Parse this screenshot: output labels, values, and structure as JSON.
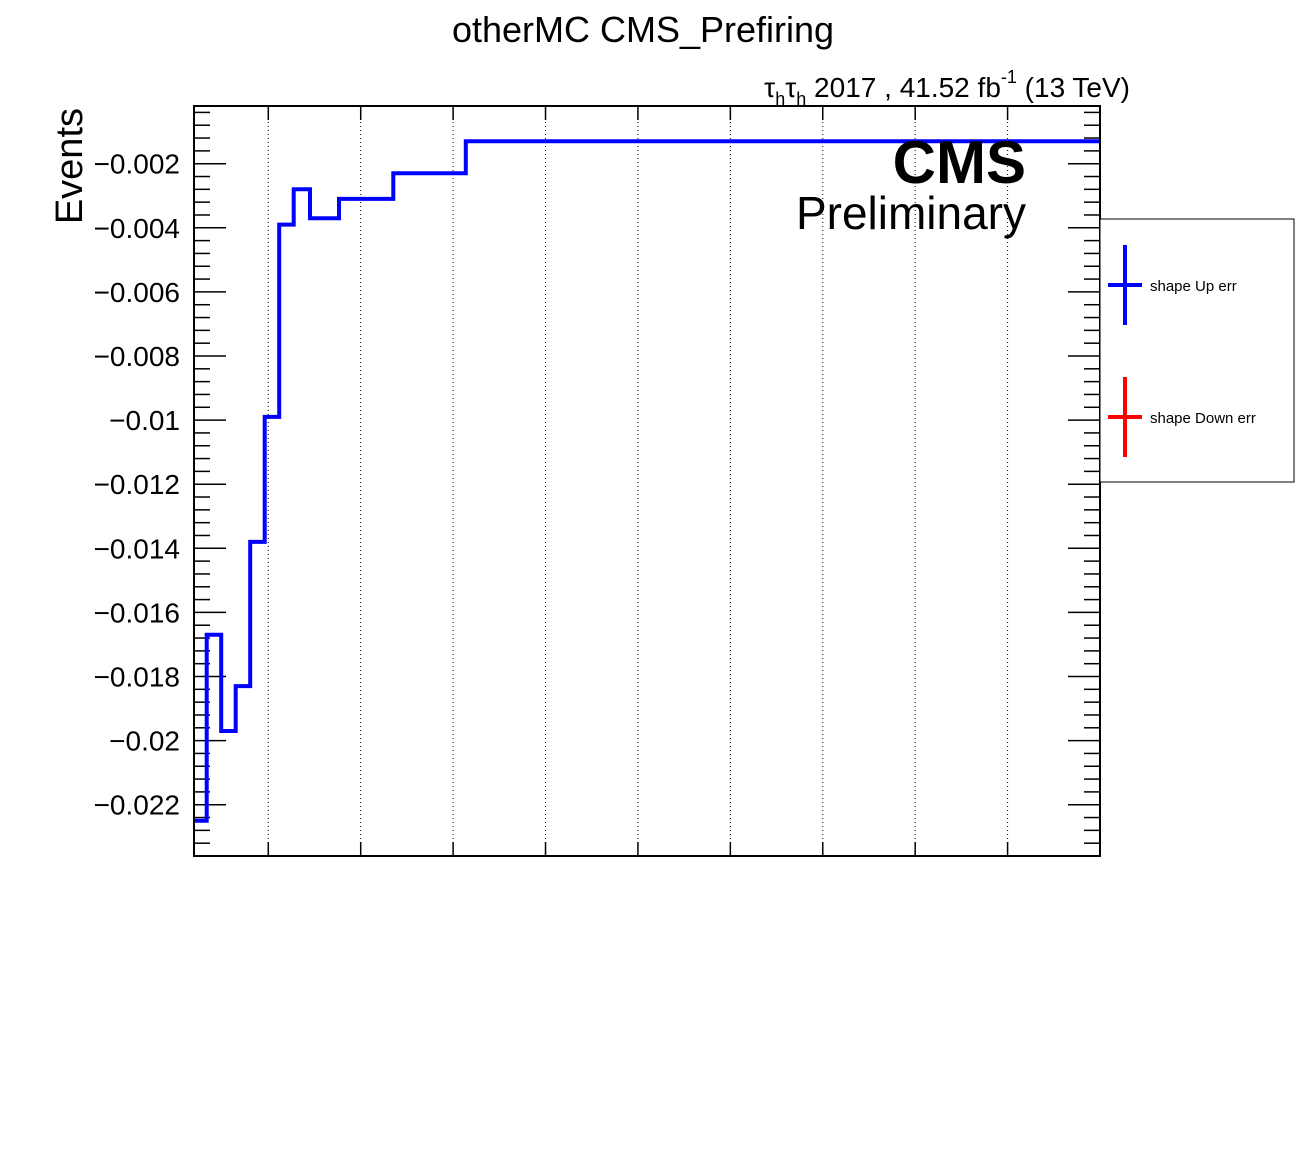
{
  "chart_data": {
    "type": "line",
    "title": "otherMC CMS_Prefiring",
    "header": {
      "tau": "τ",
      "sub": "h",
      "rest": " 2017 , 41.52 fb",
      "exp": "-1",
      "energy": " (13 TeV)"
    },
    "cms_label": "CMS",
    "cms_sublabel": "Preliminary",
    "ylabel": "Events",
    "xlabel": "",
    "ylim": [
      -0.0236,
      -0.0002
    ],
    "y_ticks": [
      {
        "value": -0.002,
        "label": "−0.002"
      },
      {
        "value": -0.004,
        "label": "−0.004"
      },
      {
        "value": -0.006,
        "label": "−0.006"
      },
      {
        "value": -0.008,
        "label": "−0.008"
      },
      {
        "value": -0.01,
        "label": "−0.01"
      },
      {
        "value": -0.012,
        "label": "−0.012"
      },
      {
        "value": -0.014,
        "label": "−0.014"
      },
      {
        "value": -0.016,
        "label": "−0.016"
      },
      {
        "value": -0.018,
        "label": "−0.018"
      },
      {
        "value": -0.02,
        "label": "−0.02"
      },
      {
        "value": -0.022,
        "label": "−0.022"
      }
    ],
    "x_bin_edges": [
      0,
      7,
      15,
      23,
      31,
      39,
      47,
      55,
      64,
      72,
      80,
      90,
      100,
      110,
      120,
      130,
      140,
      150,
      160,
      170,
      180,
      190,
      200,
      210,
      220,
      230,
      240,
      250,
      260,
      270,
      280,
      290,
      300,
      310,
      320,
      330,
      340,
      350,
      360,
      370,
      380,
      390,
      400,
      410,
      420,
      430,
      440,
      450,
      460,
      470,
      480,
      490,
      500
    ],
    "xlim": [
      0,
      500
    ],
    "x_grid": [
      41,
      92,
      143,
      194,
      245,
      296,
      347,
      398,
      449
    ],
    "grid": true,
    "series": [
      {
        "name": "shape Up err",
        "color": "#0000ff",
        "values": [
          -0.0225,
          -0.0167,
          -0.0197,
          -0.0183,
          -0.0138,
          -0.0099,
          -0.0039,
          -0.0028,
          -0.0037,
          -0.0037,
          -0.0031,
          -0.0031,
          -0.0031,
          -0.0023,
          -0.0023,
          -0.0023,
          -0.0023,
          -0.0013,
          -0.0013,
          -0.0013,
          -0.0013,
          -0.0013,
          -0.0013,
          -0.0013,
          -0.0013,
          -0.0013,
          -0.0013,
          -0.0013,
          -0.0013,
          -0.0013,
          -0.0013,
          -0.0013,
          -0.0013,
          -0.0013,
          -0.0013,
          -0.0013,
          -0.0013,
          -0.0013,
          -0.0013,
          -0.0013,
          -0.0013,
          -0.0013,
          -0.0013,
          -0.0013,
          -0.0013,
          -0.0013,
          -0.0013,
          -0.0013,
          -0.0013,
          -0.0013,
          -0.0013,
          -0.0013
        ]
      },
      {
        "name": "shape Down err",
        "color": "#ff0000",
        "values": []
      }
    ],
    "legend": [
      {
        "label": "shape Up err",
        "color": "#0000ff"
      },
      {
        "label": "shape Down err",
        "color": "#ff0000"
      }
    ],
    "legend_position": "right"
  }
}
